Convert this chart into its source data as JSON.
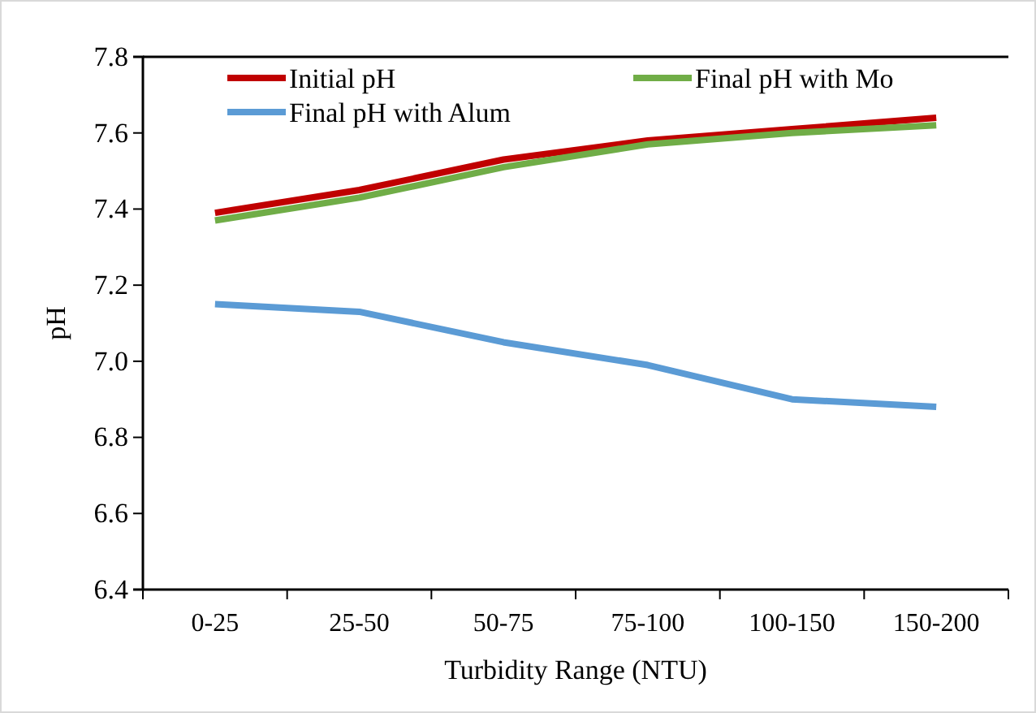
{
  "chart_data": {
    "type": "line",
    "xlabel": "Turbidity Range (NTU)",
    "ylabel": "pH",
    "categories": [
      "0-25",
      "25-50",
      "50-75",
      "75-100",
      "100-150",
      "150-200"
    ],
    "series": [
      {
        "name": "Initial pH",
        "color": "#c00000",
        "values": [
          7.39,
          7.45,
          7.53,
          7.58,
          7.61,
          7.64
        ]
      },
      {
        "name": "Final pH with Mo",
        "color": "#70ad47",
        "values": [
          7.37,
          7.43,
          7.51,
          7.57,
          7.6,
          7.62
        ]
      },
      {
        "name": "Final pH with Alum",
        "color": "#5b9bd5",
        "values": [
          7.15,
          7.13,
          7.05,
          6.99,
          6.9,
          6.88
        ]
      }
    ],
    "ylim": [
      6.4,
      7.8
    ],
    "yticks": [
      6.4,
      6.6,
      6.8,
      {
        "value": 7,
        "label": "7.0"
      },
      7.2,
      7.4,
      7.6,
      7.8
    ],
    "grid": false,
    "legend": "top",
    "marker": "none",
    "line_style": "solid"
  }
}
